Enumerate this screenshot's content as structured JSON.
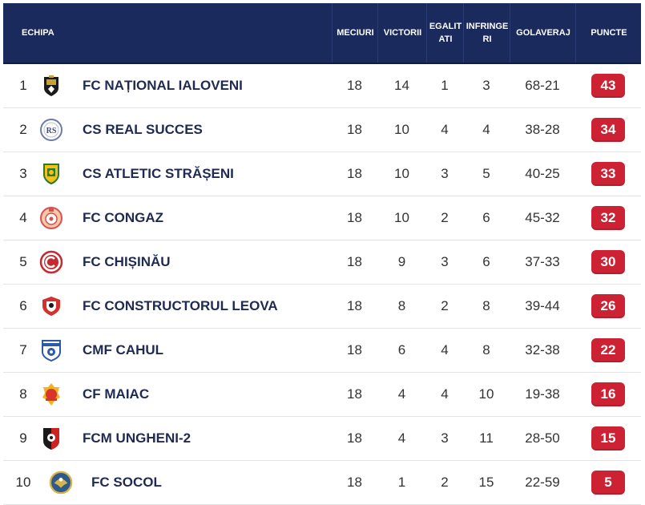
{
  "colors": {
    "header_bg": "#1a2a5c",
    "points_badge": "#cc2233",
    "team_name": "#1f2a52"
  },
  "headers": {
    "team": "ECHIPA",
    "played": "MECIURI",
    "wins": "VICTORII",
    "draws": [
      "EGALIT",
      "ATI"
    ],
    "losses": [
      "INFRINGE",
      "RI"
    ],
    "goals": "GOLAVERAJ",
    "points": "PUNCTE"
  },
  "rows": [
    {
      "rank": "1",
      "team": "FC NAȚIONAL IALOVENI",
      "logo": "nationa-ialoveni-crest-icon",
      "played": "18",
      "wins": "14",
      "draws": "1",
      "losses": "3",
      "goals": "68-21",
      "points": "43"
    },
    {
      "rank": "2",
      "team": "CS REAL SUCCES",
      "logo": "real-succes-crest-icon",
      "played": "18",
      "wins": "10",
      "draws": "4",
      "losses": "4",
      "goals": "38-28",
      "points": "34"
    },
    {
      "rank": "3",
      "team": "CS ATLETIC STRĂȘENI",
      "logo": "atletic-straseni-crest-icon",
      "played": "18",
      "wins": "10",
      "draws": "3",
      "losses": "5",
      "goals": "40-25",
      "points": "33"
    },
    {
      "rank": "4",
      "team": "FC CONGAZ",
      "logo": "congaz-crest-icon",
      "played": "18",
      "wins": "10",
      "draws": "2",
      "losses": "6",
      "goals": "45-32",
      "points": "32"
    },
    {
      "rank": "5",
      "team": "FC CHIȘINĂU",
      "logo": "chisinau-crest-icon",
      "played": "18",
      "wins": "9",
      "draws": "3",
      "losses": "6",
      "goals": "37-33",
      "points": "30"
    },
    {
      "rank": "6",
      "team": "FC CONSTRUCTORUL LEOVA",
      "logo": "constructorul-leova-crest-icon",
      "played": "18",
      "wins": "8",
      "draws": "2",
      "losses": "8",
      "goals": "39-44",
      "points": "26"
    },
    {
      "rank": "7",
      "team": "CMF CAHUL",
      "logo": "cahul-crest-icon",
      "played": "18",
      "wins": "6",
      "draws": "4",
      "losses": "8",
      "goals": "32-38",
      "points": "22"
    },
    {
      "rank": "8",
      "team": "CF MAIAC",
      "logo": "maiac-crest-icon",
      "played": "18",
      "wins": "4",
      "draws": "4",
      "losses": "10",
      "goals": "19-38",
      "points": "16"
    },
    {
      "rank": "9",
      "team": "FCM UNGHENI-2",
      "logo": "ungheni-crest-icon",
      "played": "18",
      "wins": "4",
      "draws": "3",
      "losses": "11",
      "goals": "28-50",
      "points": "15"
    },
    {
      "rank": "10",
      "team": "FC SOCOL",
      "logo": "socol-crest-icon",
      "played": "18",
      "wins": "1",
      "draws": "2",
      "losses": "15",
      "goals": "22-59",
      "points": "5"
    }
  ]
}
